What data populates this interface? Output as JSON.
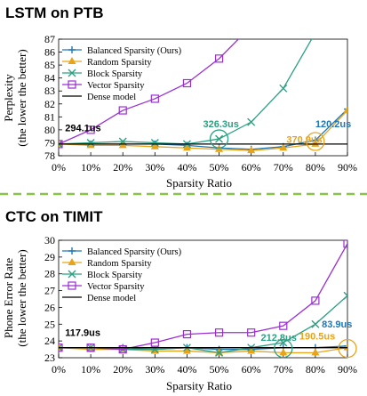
{
  "colors": {
    "balanced": "#1f77b4",
    "random": "#e8a317",
    "block": "#2ca083",
    "vector": "#9b30d0",
    "dense": "#000000",
    "divider": "#8bc34a"
  },
  "chart_data": [
    {
      "type": "line",
      "title": "LSTM on PTB",
      "xlabel": "Sparsity Ratio",
      "ylabel": "Perplexity",
      "ylabel2": "(the lower the better)",
      "categories": [
        "0%",
        "10%",
        "20%",
        "30%",
        "40%",
        "50%",
        "60%",
        "70%",
        "80%",
        "90%"
      ],
      "x": [
        0,
        10,
        20,
        30,
        40,
        50,
        60,
        70,
        80,
        90
      ],
      "ylim": [
        78,
        87
      ],
      "yticks": [
        78,
        79,
        80,
        81,
        82,
        83,
        84,
        85,
        86,
        87
      ],
      "legend_position": "top-left",
      "series": [
        {
          "name": "Balanced Sparsity (Ours)",
          "key": "balanced",
          "marker": "plus",
          "values": [
            78.9,
            78.9,
            78.9,
            78.9,
            78.8,
            78.6,
            78.5,
            78.7,
            79.2,
            81.6
          ]
        },
        {
          "name": "Random Sparsity",
          "key": "random",
          "marker": "triangle",
          "values": [
            78.9,
            78.8,
            78.8,
            78.7,
            78.6,
            78.5,
            78.4,
            78.6,
            78.9,
            81.5
          ]
        },
        {
          "name": "Block Sparsity",
          "key": "block",
          "marker": "x",
          "values": [
            78.9,
            79.0,
            79.1,
            79.0,
            78.9,
            79.3,
            80.6,
            83.2,
            87.5,
            null
          ]
        },
        {
          "name": "Vector Sparsity",
          "key": "vector",
          "marker": "square",
          "values": [
            78.9,
            80.0,
            81.5,
            82.4,
            83.6,
            85.5,
            88.0,
            null,
            null,
            null
          ]
        },
        {
          "name": "Dense model",
          "key": "dense",
          "marker": "none",
          "constant": 78.9
        }
      ],
      "annotations": [
        {
          "text": "294.1us",
          "x": 2,
          "y": 79.9,
          "key": "dense"
        },
        {
          "text": "326.3us",
          "x": 45,
          "y": 80.2,
          "key": "block",
          "circle": {
            "x": 50,
            "y": 79.3
          }
        },
        {
          "text": "370.9us",
          "x": 71,
          "y": 79.0,
          "key": "random",
          "circle": {
            "x": 80,
            "y": 79.1
          }
        },
        {
          "text": "120.2us",
          "x": 80,
          "y": 80.2,
          "key": "balanced"
        }
      ]
    },
    {
      "type": "line",
      "title": "CTC on TIMIT",
      "xlabel": "Sparsity Ratio",
      "ylabel": "Phone Error Rate",
      "ylabel2": "(the lower the better)",
      "categories": [
        "0%",
        "10%",
        "20%",
        "30%",
        "40%",
        "50%",
        "60%",
        "70%",
        "80%",
        "90%"
      ],
      "x": [
        0,
        10,
        20,
        30,
        40,
        50,
        60,
        70,
        80,
        90
      ],
      "ylim": [
        23,
        30
      ],
      "yticks": [
        23,
        24,
        25,
        26,
        27,
        28,
        29,
        30
      ],
      "legend_position": "top-left",
      "series": [
        {
          "name": "Balanced Sparsity (Ours)",
          "key": "balanced",
          "marker": "plus",
          "values": [
            23.6,
            23.6,
            23.6,
            23.5,
            23.6,
            23.5,
            23.5,
            23.6,
            23.6,
            23.7
          ]
        },
        {
          "name": "Random Sparsity",
          "key": "random",
          "marker": "triangle",
          "values": [
            23.6,
            23.5,
            23.5,
            23.4,
            23.4,
            23.3,
            23.4,
            23.3,
            23.3,
            23.6
          ]
        },
        {
          "name": "Block Sparsity",
          "key": "block",
          "marker": "x",
          "values": [
            23.6,
            23.6,
            23.5,
            23.5,
            23.6,
            23.3,
            23.6,
            23.9,
            25.0,
            26.7
          ]
        },
        {
          "name": "Vector Sparsity",
          "key": "vector",
          "marker": "square",
          "values": [
            23.6,
            23.6,
            23.5,
            23.9,
            24.4,
            24.5,
            24.5,
            24.9,
            26.4,
            29.8
          ]
        },
        {
          "name": "Dense model",
          "key": "dense",
          "marker": "none",
          "constant": 23.6
        }
      ],
      "annotations": [
        {
          "text": "117.9us",
          "x": 2,
          "y": 24.3,
          "key": "dense"
        },
        {
          "text": "212.8us",
          "x": 63,
          "y": 24.0,
          "key": "block",
          "circle": {
            "x": 70,
            "y": 23.55
          }
        },
        {
          "text": "190.5us",
          "x": 75,
          "y": 24.1,
          "key": "random",
          "circle": {
            "x": 90,
            "y": 23.55
          }
        },
        {
          "text": "83.9us",
          "x": 82,
          "y": 24.8,
          "key": "balanced"
        }
      ]
    }
  ]
}
